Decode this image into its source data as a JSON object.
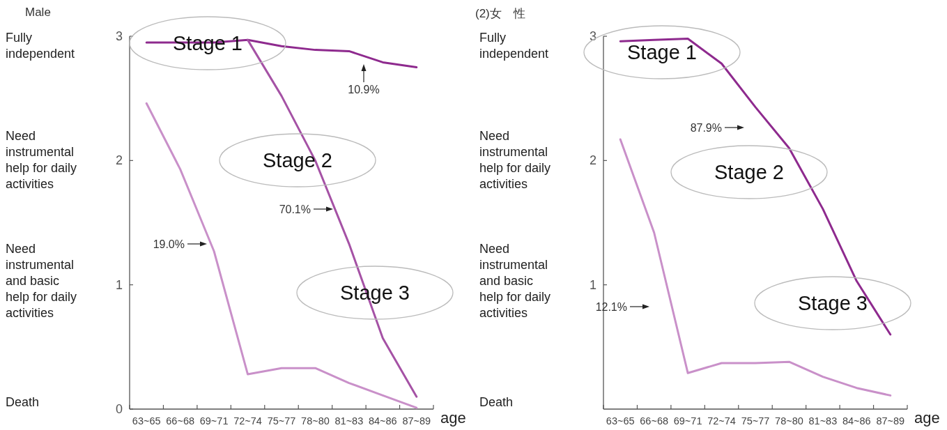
{
  "chart_data": [
    {
      "type": "line",
      "title": "Male",
      "xlabel": "age",
      "categories": [
        "63~65",
        "66~68",
        "69~71",
        "72~74",
        "75~77",
        "78~80",
        "81~83",
        "84~86",
        "87~89"
      ],
      "series": [
        {
          "color": "#8e2a8e",
          "values": [
            2.95,
            2.95,
            2.95,
            2.97,
            2.92,
            2.89,
            2.88,
            2.79,
            2.75
          ]
        },
        {
          "color": "#a552a5",
          "values": [
            null,
            null,
            null,
            2.97,
            2.52,
            2.0,
            1.33,
            0.57,
            0.1
          ]
        },
        {
          "color": "#c990c9",
          "values": [
            2.46,
            1.93,
            1.27,
            0.28,
            0.33,
            0.33,
            0.21,
            0.11,
            0.01
          ]
        }
      ],
      "ylim": [
        0,
        3
      ],
      "yticks": [
        0,
        1,
        2,
        3
      ],
      "annotations": [
        "Fully independent",
        "Need instrumental help for daily activities",
        "Need instrumental and basic help for daily activities",
        "Death",
        "Stage 1",
        "Stage 2",
        "Stage 3",
        "10.9%",
        "70.1%",
        "19.0%"
      ]
    },
    {
      "type": "line",
      "title": "(2)女　性",
      "xlabel": "age",
      "categories": [
        "63~65",
        "66~68",
        "69~71",
        "72~74",
        "75~77",
        "78~80",
        "81~83",
        "84~86",
        "87~89"
      ],
      "series": [
        {
          "color": "#8e2a8e",
          "values": [
            2.96,
            2.97,
            2.98,
            2.78,
            2.43,
            2.1,
            1.61,
            1.03,
            0.6
          ]
        },
        {
          "color": "#c990c9",
          "values": [
            2.17,
            1.42,
            0.29,
            0.37,
            0.37,
            0.38,
            0.26,
            0.17,
            0.11
          ]
        }
      ],
      "ylim": [
        0,
        3
      ],
      "yticks": [
        1,
        2,
        3
      ],
      "annotations": [
        "Fully independent",
        "Need instrumental help for daily activities",
        "Need instrumental and basic help for daily activities",
        "Death",
        "Stage 1",
        "Stage 2",
        "Stage 3",
        "87.9%",
        "12.1%"
      ]
    }
  ]
}
